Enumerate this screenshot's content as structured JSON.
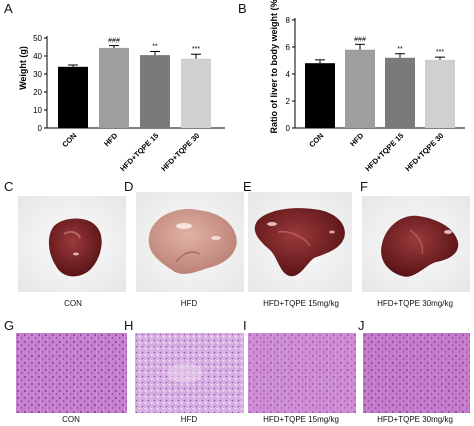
{
  "figure": {
    "panel_letters": [
      "A",
      "B",
      "C",
      "D",
      "E",
      "F",
      "G",
      "H",
      "I",
      "J"
    ],
    "photo_captions": [
      "CON",
      "HFD",
      "HFD+TQPE 15mg/kg",
      "HFD+TQPE 30mg/kg"
    ],
    "histo_captions": [
      "CON",
      "HFD",
      "HFD+TQPE 15mg/kg",
      "HFD+TQPE 30mg/kg"
    ]
  },
  "chart_data": [
    {
      "type": "bar",
      "categories": [
        "CON",
        "HFD",
        "HFD+TQPE 15",
        "HFD+TQPE 30"
      ],
      "values": [
        34,
        44.5,
        40.5,
        38.5
      ],
      "errors": [
        1,
        1.3,
        2,
        2.5
      ],
      "annotations": [
        "",
        "###",
        "**",
        "***"
      ],
      "ylabel": "Weight (g)",
      "ylim": [
        0,
        50
      ],
      "yticks": [
        0,
        10,
        20,
        30,
        40,
        50
      ],
      "colors": [
        "#000000",
        "#9e9e9e",
        "#7a7a7a",
        "#d0d0d0"
      ]
    },
    {
      "type": "bar",
      "categories": [
        "CON",
        "HFD",
        "HFD+TQPE 15",
        "HFD+TQPE 30"
      ],
      "values": [
        4.8,
        5.8,
        5.2,
        5.05
      ],
      "errors": [
        0.25,
        0.4,
        0.3,
        0.2
      ],
      "annotations": [
        "",
        "###",
        "**",
        "***"
      ],
      "ylabel": "Ratio of liver to body weight (%)",
      "ylim": [
        0,
        8
      ],
      "yticks": [
        0,
        2,
        4,
        6,
        8
      ],
      "colors": [
        "#000000",
        "#9e9e9e",
        "#7a7a7a",
        "#d0d0d0"
      ]
    }
  ]
}
